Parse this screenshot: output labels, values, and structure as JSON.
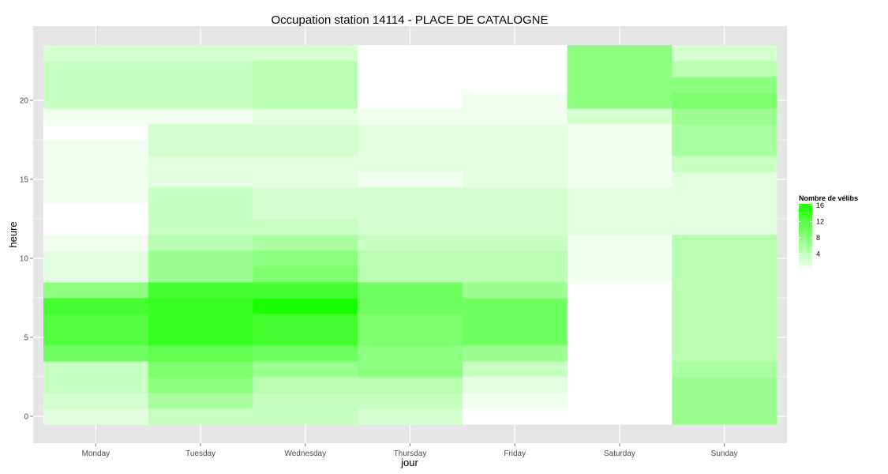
{
  "chart_data": {
    "type": "heatmap",
    "title": "Occupation station 14114 - PLACE DE CATALOGNE",
    "xlabel": "jour",
    "ylabel": "heure",
    "x_categories": [
      "Monday",
      "Tuesday",
      "Wednesday",
      "Thursday",
      "Friday",
      "Saturday",
      "Sunday"
    ],
    "y_values": [
      0,
      1,
      2,
      3,
      4,
      5,
      6,
      7,
      8,
      9,
      10,
      11,
      12,
      13,
      14,
      15,
      16,
      17,
      18,
      19,
      20,
      21,
      22,
      23
    ],
    "y_ticks": [
      0,
      5,
      10,
      15,
      20
    ],
    "ylim": [
      -0.5,
      23.5
    ],
    "grid": true,
    "values": [
      [
        2,
        4,
        4,
        3,
        0,
        0,
        7
      ],
      [
        3,
        6,
        4,
        4,
        1,
        0,
        7
      ],
      [
        4,
        8,
        5,
        5,
        2,
        0,
        7
      ],
      [
        4,
        9,
        7,
        8,
        4,
        0,
        6
      ],
      [
        10,
        11,
        10,
        8,
        7,
        0,
        5
      ],
      [
        12,
        14,
        13,
        9,
        10,
        0,
        5
      ],
      [
        12,
        14,
        13,
        9,
        10,
        0,
        5
      ],
      [
        13,
        14,
        16,
        10,
        10,
        0,
        5
      ],
      [
        8,
        13,
        13,
        10,
        7,
        0,
        5
      ],
      [
        2,
        7,
        9,
        5,
        5,
        1,
        5
      ],
      [
        2,
        7,
        8,
        5,
        5,
        1,
        5
      ],
      [
        1,
        5,
        6,
        4,
        4,
        1,
        5
      ],
      [
        0,
        4,
        4,
        3,
        3,
        2,
        2
      ],
      [
        0,
        4,
        3,
        3,
        3,
        2,
        2
      ],
      [
        1,
        4,
        3,
        3,
        3,
        2,
        2
      ],
      [
        1,
        2,
        2,
        1,
        2,
        1,
        2
      ],
      [
        1,
        2,
        2,
        2,
        2,
        1,
        4
      ],
      [
        1,
        3,
        3,
        2,
        2,
        1,
        6
      ],
      [
        0,
        3,
        3,
        2,
        2,
        1,
        6
      ],
      [
        1,
        1,
        2,
        1,
        1,
        3,
        7
      ],
      [
        4,
        4,
        5,
        0,
        1,
        8,
        9
      ],
      [
        4,
        4,
        5,
        0,
        0,
        8,
        8
      ],
      [
        4,
        4,
        5,
        0,
        0,
        8,
        5
      ],
      [
        3,
        3,
        3,
        0,
        0,
        8,
        3
      ]
    ],
    "color_low": "#ffffff",
    "color_high": "#1aff00",
    "value_range": [
      0,
      16
    ],
    "legend": {
      "title": "Nombre de vélibs",
      "position": "right",
      "breaks": [
        4,
        8,
        12,
        16
      ]
    },
    "panel_background": "#e5e5e5",
    "grid_color": "#ffffff"
  }
}
